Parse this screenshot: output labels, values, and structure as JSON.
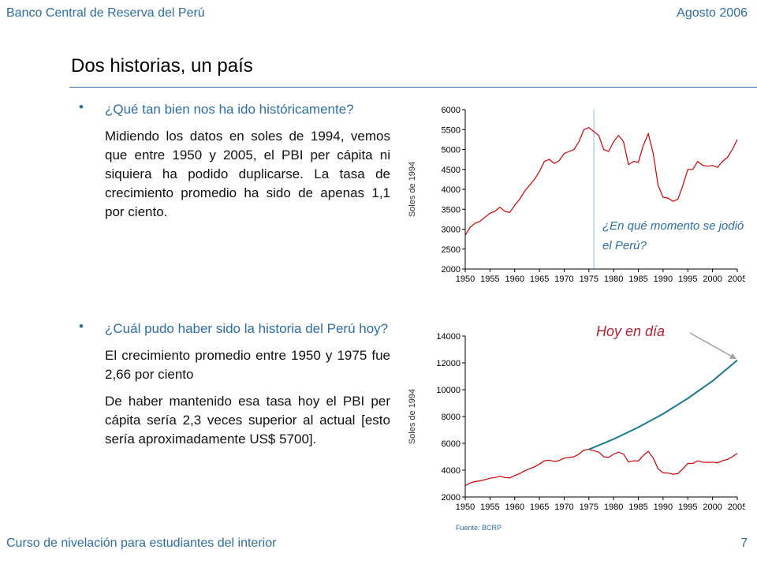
{
  "header": {
    "org": "Banco Central de Reserva del Perú",
    "date": "Agosto 2006"
  },
  "slide": {
    "title": "Dos historias, un país"
  },
  "content": {
    "blocks": [
      {
        "bullet": "•",
        "question": "¿Qué tan bien nos ha ido históricamente?",
        "paragraphs": [
          "Midiendo los datos en soles de 1994, vemos que entre 1950 y 2005, el PBI per cápita ni siquiera ha podido duplicarse. La tasa de crecimiento promedio ha sido de apenas 1,1 por ciento."
        ]
      },
      {
        "bullet": "•",
        "question": "¿Cuál pudo haber sido la historia del Perú hoy?",
        "paragraphs": [
          "El crecimiento promedio entre 1950 y 1975 fue 2,66 por ciento",
          "De haber mantenido esa tasa hoy el PBI per cápita sería 2,3 veces superior al actual [esto sería aproximadamente US$ 5700]."
        ]
      }
    ]
  },
  "chart_data": [
    {
      "type": "line",
      "ylabel": "Soles de 1994",
      "ylim": [
        2000,
        6000
      ],
      "yticks": [
        2000,
        2500,
        3000,
        3500,
        4000,
        4500,
        5000,
        5500,
        6000
      ],
      "xlim": [
        1950,
        2005
      ],
      "xticks": [
        1950,
        1955,
        1960,
        1965,
        1970,
        1975,
        1980,
        1985,
        1990,
        1995,
        2000,
        2005
      ],
      "marker_line_x": 1976,
      "annotation": "¿En qué momento se jodió el Perú?",
      "grid": false,
      "series": [
        {
          "color": "#cc0000",
          "x": [
            1950,
            1951,
            1952,
            1953,
            1954,
            1955,
            1956,
            1957,
            1958,
            1959,
            1960,
            1961,
            1962,
            1963,
            1964,
            1965,
            1966,
            1967,
            1968,
            1969,
            1970,
            1971,
            1972,
            1973,
            1974,
            1975,
            1976,
            1977,
            1978,
            1979,
            1980,
            1981,
            1982,
            1983,
            1984,
            1985,
            1986,
            1987,
            1988,
            1989,
            1990,
            1991,
            1992,
            1993,
            1994,
            1995,
            1996,
            1997,
            1998,
            1999,
            2000,
            2001,
            2002,
            2003,
            2004,
            2005
          ],
          "values": [
            2850,
            3050,
            3150,
            3200,
            3300,
            3400,
            3450,
            3550,
            3450,
            3420,
            3600,
            3750,
            3950,
            4100,
            4250,
            4450,
            4700,
            4750,
            4650,
            4720,
            4900,
            4950,
            5000,
            5200,
            5500,
            5550,
            5450,
            5350,
            5000,
            4950,
            5200,
            5350,
            5200,
            4620,
            4700,
            4680,
            5100,
            5400,
            4900,
            4100,
            3800,
            3780,
            3700,
            3750,
            4100,
            4500,
            4500,
            4700,
            4600,
            4580,
            4600,
            4550,
            4700,
            4800,
            5000,
            5250
          ]
        }
      ]
    },
    {
      "type": "line",
      "ylabel": "Soles de 1994",
      "ylim": [
        2000,
        14000
      ],
      "yticks": [
        2000,
        4000,
        6000,
        8000,
        10000,
        12000,
        14000
      ],
      "xlim": [
        1950,
        2005
      ],
      "xticks": [
        1950,
        1955,
        1960,
        1965,
        1970,
        1975,
        1980,
        1985,
        1990,
        1995,
        2000,
        2005
      ],
      "annotation": "Hoy en día",
      "source": "Fuente: BCRP",
      "grid": false,
      "series": [
        {
          "color": "#cc0000",
          "x": [
            1950,
            1951,
            1952,
            1953,
            1954,
            1955,
            1956,
            1957,
            1958,
            1959,
            1960,
            1961,
            1962,
            1963,
            1964,
            1965,
            1966,
            1967,
            1968,
            1969,
            1970,
            1971,
            1972,
            1973,
            1974,
            1975,
            1976,
            1977,
            1978,
            1979,
            1980,
            1981,
            1982,
            1983,
            1984,
            1985,
            1986,
            1987,
            1988,
            1989,
            1990,
            1991,
            1992,
            1993,
            1994,
            1995,
            1996,
            1997,
            1998,
            1999,
            2000,
            2001,
            2002,
            2003,
            2004,
            2005
          ],
          "values": [
            2850,
            3050,
            3150,
            3200,
            3300,
            3400,
            3450,
            3550,
            3450,
            3420,
            3600,
            3750,
            3950,
            4100,
            4250,
            4450,
            4700,
            4750,
            4650,
            4720,
            4900,
            4950,
            5000,
            5200,
            5500,
            5550,
            5450,
            5350,
            5000,
            4950,
            5200,
            5350,
            5200,
            4620,
            4700,
            4680,
            5100,
            5400,
            4900,
            4100,
            3800,
            3780,
            3700,
            3750,
            4100,
            4500,
            4500,
            4700,
            4600,
            4580,
            4600,
            4550,
            4700,
            4800,
            5000,
            5250
          ]
        },
        {
          "color": "#1a7a8c",
          "x": [
            1975,
            1980,
            1985,
            1990,
            1995,
            2000,
            2005
          ],
          "values": [
            5550,
            6320,
            7200,
            8200,
            9350,
            10650,
            12200
          ]
        }
      ]
    }
  ]
}
